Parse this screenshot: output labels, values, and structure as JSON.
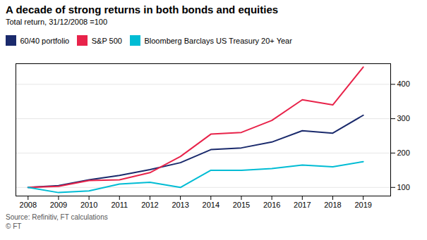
{
  "chart_data": {
    "type": "line",
    "title": "A decade of strong returns in both bonds and equities",
    "subtitle": "Total return, 31/12/2008 =100",
    "annotations": [
      "Source: Refinitiv, FT calculations",
      "© FT"
    ],
    "x": [
      2008,
      2009,
      2010,
      2011,
      2012,
      2013,
      2014,
      2015,
      2016,
      2017,
      2018,
      2019
    ],
    "series": [
      {
        "name": "60/40 portfolio",
        "color": "#1a2a6c",
        "values": [
          100,
          105,
          122,
          135,
          152,
          172,
          210,
          215,
          232,
          265,
          258,
          310
        ]
      },
      {
        "name": "S&P 500",
        "color": "#e8234a",
        "values": [
          100,
          103,
          120,
          122,
          143,
          190,
          255,
          260,
          295,
          355,
          340,
          450
        ]
      },
      {
        "name": "Bloomberg Barclays US Treasury 20+ Year",
        "color": "#00bcd4",
        "values": [
          100,
          85,
          90,
          110,
          115,
          100,
          150,
          150,
          155,
          165,
          160,
          175
        ]
      }
    ],
    "xlim": [
      2007.6,
      2019.9
    ],
    "xticks": [
      2008,
      2009,
      2010,
      2011,
      2012,
      2013,
      2014,
      2015,
      2016,
      2017,
      2018,
      2019
    ],
    "ylim": [
      75,
      460
    ],
    "yticks": [
      100,
      200,
      300,
      400
    ],
    "grid": true
  }
}
